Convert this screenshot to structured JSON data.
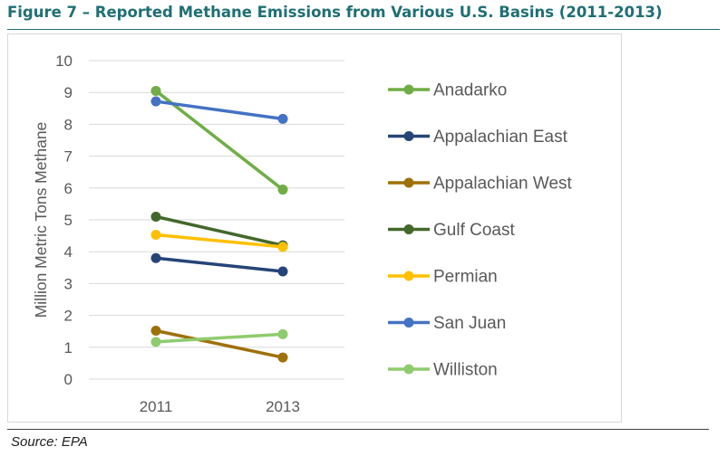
{
  "figure": {
    "title": "Figure 7 – Reported Methane Emissions from Various U.S. Basins (2011-2013)",
    "source": "Source: EPA"
  },
  "chart_data": {
    "type": "line",
    "title": "",
    "xlabel": "",
    "ylabel": "Million Metric Tons Methane",
    "categories": [
      "2011",
      "2013"
    ],
    "ylim": [
      0,
      10
    ],
    "yticks": [
      "0",
      "1",
      "2",
      "3",
      "4",
      "5",
      "6",
      "7",
      "8",
      "9",
      "10"
    ],
    "grid": true,
    "legend_position": "right",
    "series": [
      {
        "name": "Anadarko",
        "values": [
          9.05,
          5.95
        ],
        "color": "#70ad47"
      },
      {
        "name": "Appalachian East",
        "values": [
          3.8,
          3.38
        ],
        "color": "#264478"
      },
      {
        "name": "Appalachian West",
        "values": [
          1.52,
          0.68
        ],
        "color": "#9e7009"
      },
      {
        "name": "Gulf Coast",
        "values": [
          5.1,
          4.2
        ],
        "color": "#43682b"
      },
      {
        "name": "Permian",
        "values": [
          4.53,
          4.15
        ],
        "color": "#ffc000"
      },
      {
        "name": "San Juan",
        "values": [
          8.72,
          8.17
        ],
        "color": "#4472c4"
      },
      {
        "name": "Williston",
        "values": [
          1.17,
          1.41
        ],
        "color": "#8fcb6e"
      }
    ]
  }
}
